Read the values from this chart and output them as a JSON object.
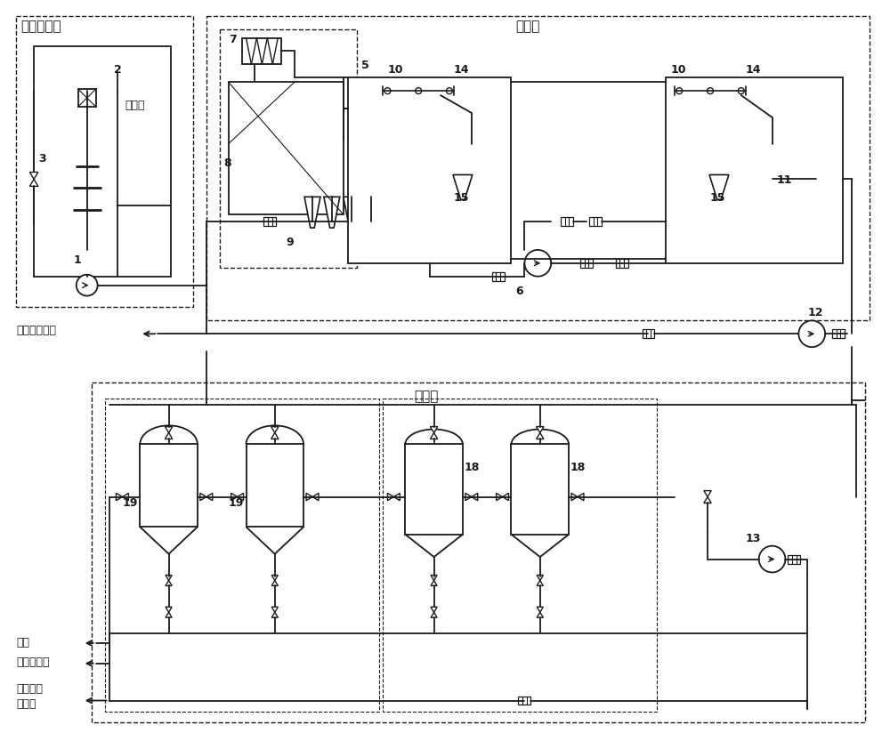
{
  "bg_color": "#ffffff",
  "line_color": "#1a1a1a",
  "labels": {
    "section1": "缓冲沉降槽",
    "section2": "气浮槽",
    "section3": "过滤槽",
    "xijingye": "洗井液",
    "fuzha": "浮渣收集外运",
    "fangqing": "放净",
    "huanchong": "缓冲沉降槽",
    "huizhu1": "达到回注",
    "huizhu2": "水标准",
    "n1": "1",
    "n2": "2",
    "n3": "3",
    "n5": "5",
    "n6": "6",
    "n7": "7",
    "n8": "8",
    "n9": "9",
    "n10a": "10",
    "n10b": "10",
    "n11": "11",
    "n12": "12",
    "n13": "13",
    "n14a": "14",
    "n14b": "14",
    "n15a": "15",
    "n15b": "15",
    "n18a": "18",
    "n18b": "18",
    "n19a": "19",
    "n19b": "19"
  }
}
